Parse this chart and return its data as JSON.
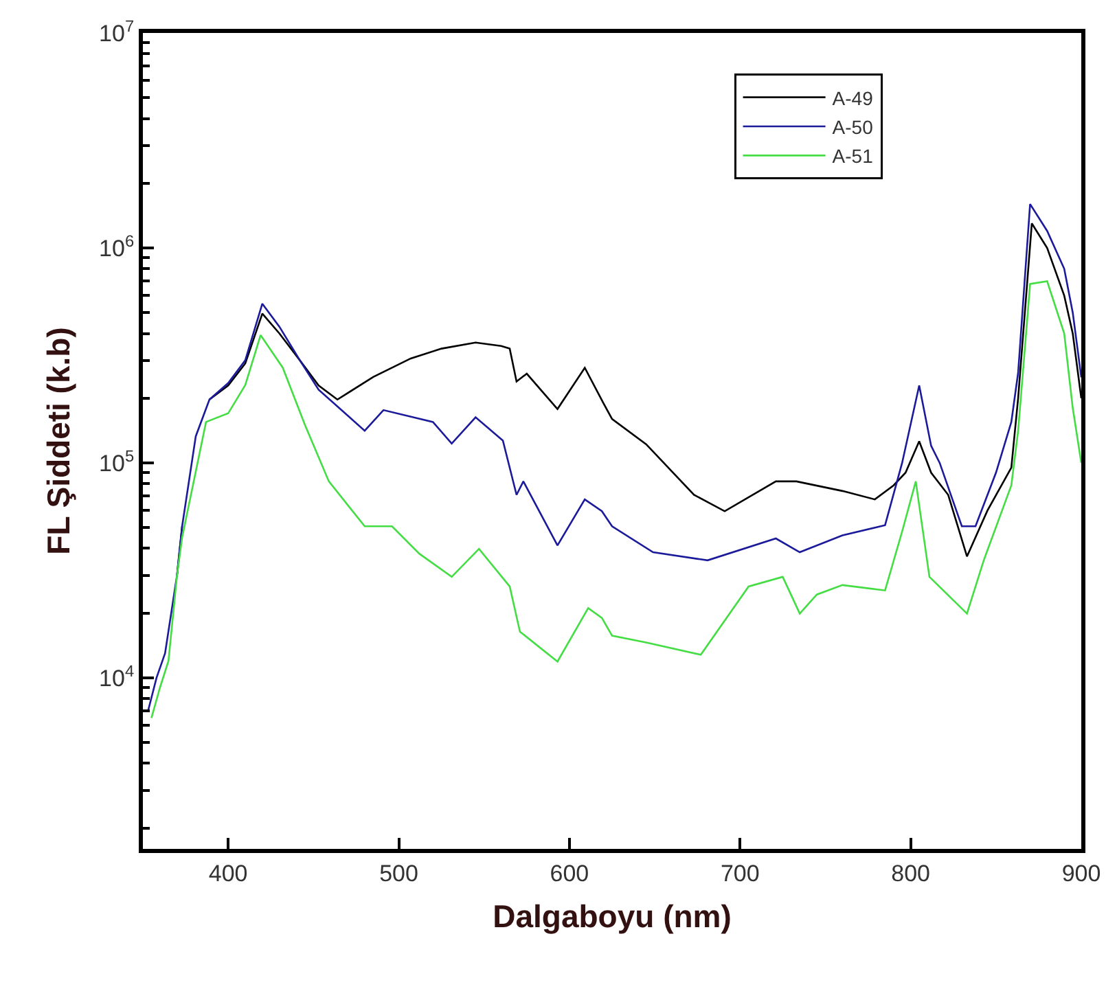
{
  "chart_data": {
    "type": "line",
    "xlabel": "Dalgaboyu (nm)",
    "ylabel": "FL Şiddeti (k.b)",
    "log": "y",
    "xlim": [
      350,
      900
    ],
    "xticks": [
      400,
      500,
      600,
      700,
      800,
      900
    ],
    "ylim": [
      1600,
      10000000
    ],
    "yticks": [
      {
        "value": 10000,
        "label": "10$^{4}$"
      },
      {
        "value": 100000,
        "label": "10$^{5}$"
      },
      {
        "value": 1000000,
        "label": "10$^{6}$"
      },
      {
        "value": 10000000,
        "label": "10$^{7}$"
      }
    ],
    "legend": "top right",
    "marker": "none",
    "line_style": "solid",
    "series": [
      {
        "name": "A-49",
        "color": "#000000",
        "x": [
          370,
          373,
          381,
          389,
          400,
          410,
          420,
          430,
          442,
          453,
          464,
          485,
          507,
          525,
          545,
          560,
          565,
          569,
          575,
          593,
          609,
          620,
          625,
          645,
          673,
          691,
          721,
          733,
          760,
          779,
          790,
          797,
          805,
          812,
          822,
          833,
          845,
          859,
          863,
          871,
          880,
          890,
          895,
          900
        ],
        "values": [
          30000,
          50700,
          null,
          197000,
          229000,
          290000,
          495000,
          400000,
          300000,
          229000,
          197000,
          251000,
          306000,
          340000,
          363000,
          350000,
          340000,
          239000,
          260000,
          178000,
          277000,
          189000,
          160000,
          122000,
          71000,
          59600,
          82000,
          82000,
          74000,
          67600,
          78600,
          90000,
          126000,
          90000,
          71000,
          36700,
          60000,
          95000,
          200000,
          1300000,
          1000000,
          600000,
          400000,
          200000
        ]
      },
      {
        "name": "A-50",
        "color": "#1a1a9a",
        "x": [
          353,
          358,
          363,
          370,
          373,
          381,
          389,
          400,
          410,
          420,
          430,
          442,
          453,
          480,
          491,
          520,
          531,
          545,
          561,
          569,
          573,
          593,
          609,
          619,
          625,
          649,
          681,
          721,
          735,
          760,
          785,
          795,
          805,
          812,
          817,
          830,
          838,
          850,
          859,
          863,
          870,
          880,
          890,
          895,
          900
        ],
        "values": [
          7000,
          10000,
          13000,
          30000,
          50700,
          133000,
          197000,
          235000,
          300000,
          550000,
          430000,
          300000,
          219000,
          141000,
          176000,
          155000,
          123000,
          163000,
          127000,
          71000,
          82000,
          41300,
          67600,
          59600,
          50700,
          38400,
          35200,
          44500,
          38400,
          46000,
          51300,
          100000,
          229000,
          120000,
          100000,
          50700,
          50700,
          90000,
          155000,
          263000,
          1600000,
          1200000,
          800000,
          500000,
          250000
        ]
      },
      {
        "name": "A-51",
        "color": "#44dd44",
        "x": [
          355,
          360,
          365,
          370,
          373,
          387,
          400,
          410,
          419,
          432,
          445,
          459,
          480,
          496,
          512,
          531,
          547,
          565,
          571,
          593,
          611,
          619,
          625,
          645,
          677,
          705,
          725,
          735,
          745,
          760,
          785,
          795,
          803,
          811,
          833,
          843,
          859,
          863,
          870,
          880,
          890,
          895,
          900
        ],
        "values": [
          6500,
          9000,
          12000,
          30000,
          45000,
          155000,
          170000,
          230000,
          393000,
          277000,
          150000,
          82000,
          50700,
          50700,
          37800,
          29500,
          39800,
          26600,
          16400,
          11900,
          21100,
          19000,
          15700,
          14600,
          12800,
          26600,
          29500,
          19900,
          24400,
          27000,
          25500,
          47900,
          82000,
          29500,
          19900,
          35500,
          78600,
          141000,
          680000,
          700000,
          400000,
          180000,
          100000
        ]
      }
    ]
  }
}
